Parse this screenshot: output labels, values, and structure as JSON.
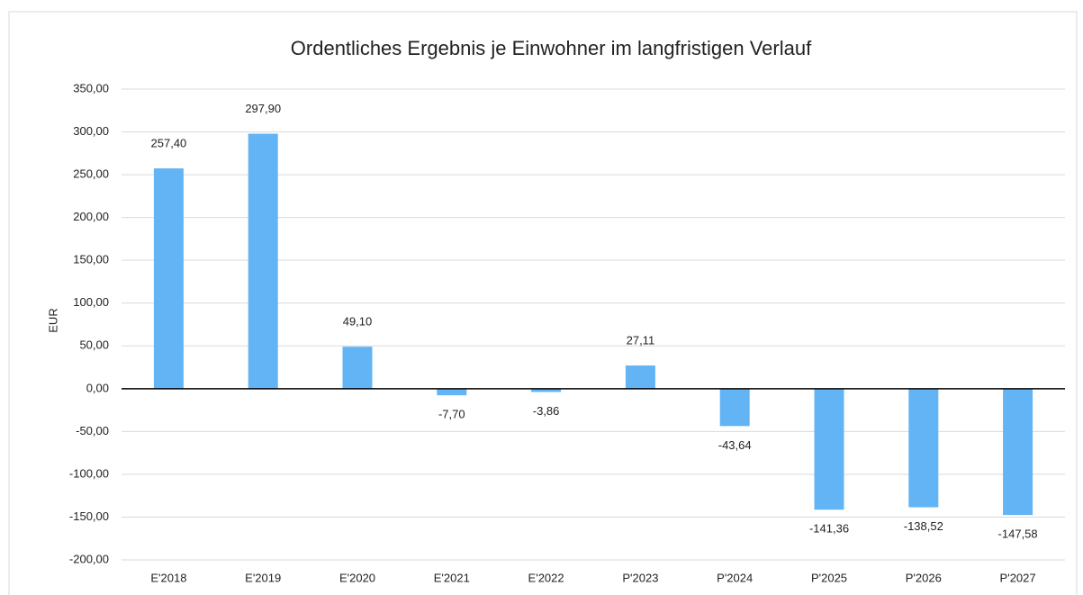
{
  "chart_data": {
    "type": "bar",
    "title": "Ordentliches Ergebnis je Einwohner im langfristigen Verlauf",
    "y_label": "EUR",
    "categories": [
      "E'2018",
      "E'2019",
      "E'2020",
      "E'2021",
      "E'2022",
      "P'2023",
      "P'2024",
      "P'2025",
      "P'2026",
      "P'2027"
    ],
    "values": [
      257.4,
      297.9,
      49.1,
      -7.7,
      -3.86,
      27.11,
      -43.64,
      -141.36,
      -138.52,
      -147.58
    ],
    "value_labels": [
      "257,40",
      "297,90",
      "49,10",
      "-7,70",
      "-3,86",
      "27,11",
      "-43,64",
      "-141,36",
      "-138,52",
      "-147,58"
    ],
    "color": "#63b4f5",
    "ylim": [
      -200,
      350
    ],
    "yticks": [
      {
        "value": -200,
        "label": "-200,00"
      },
      {
        "value": -150,
        "label": "-150,00"
      },
      {
        "value": -100,
        "label": "-100,00"
      },
      {
        "value": -50,
        "label": "-50,00"
      },
      {
        "value": 0,
        "label": "0,00"
      },
      {
        "value": 50,
        "label": "50,00"
      },
      {
        "value": 100,
        "label": "100,00"
      },
      {
        "value": 150,
        "label": "150,00"
      },
      {
        "value": 200,
        "label": "200,00"
      },
      {
        "value": 250,
        "label": "250,00"
      },
      {
        "value": 300,
        "label": "300,00"
      },
      {
        "value": 350,
        "label": "350,00"
      }
    ],
    "grid": true
  }
}
